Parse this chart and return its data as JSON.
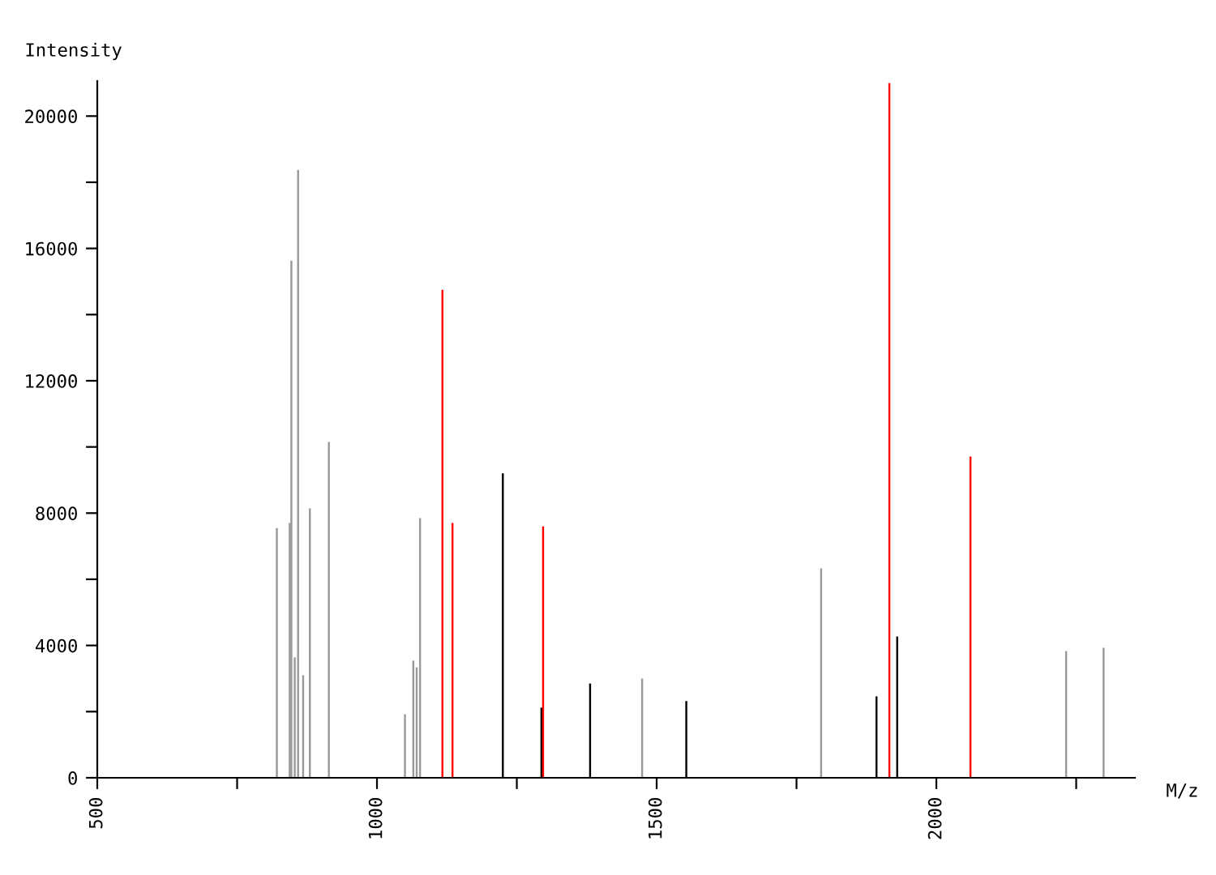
{
  "chart_data": {
    "type": "bar",
    "xlabel": "M/z",
    "ylabel": "Intensity",
    "xlim": [
      500,
      2355
    ],
    "ylim": [
      0,
      21060
    ],
    "xticks": [
      500,
      {
        "value": 750,
        "label": null
      },
      1000,
      {
        "value": 1250,
        "label": null
      },
      1500,
      {
        "value": 1750,
        "label": null
      },
      2000,
      {
        "value": 2250,
        "label": null
      }
    ],
    "yticks": [
      0,
      {
        "value": 2000,
        "label": null
      },
      4000,
      {
        "value": 6000,
        "label": null
      },
      8000,
      {
        "value": 10000,
        "label": null
      },
      12000,
      {
        "value": 14000,
        "label": null
      },
      16000,
      {
        "value": 18000,
        "label": null
      },
      20000
    ],
    "grid": false,
    "legend": false,
    "series": [
      {
        "color": "#999999",
        "x": [
          821,
          844,
          847,
          853,
          859,
          868,
          880,
          914,
          1050,
          1065,
          1071,
          1077,
          1474,
          1794,
          2232,
          2299
        ],
        "values": [
          7550,
          7700,
          15630,
          3640,
          18370,
          3100,
          8140,
          10150,
          1920,
          3540,
          3340,
          7850,
          3000,
          6330,
          3830,
          3930
        ]
      },
      {
        "color": "#000000",
        "x": [
          1225,
          1294,
          1381,
          1553,
          1893,
          1930
        ],
        "values": [
          9200,
          2120,
          2850,
          2320,
          2460,
          4270
        ]
      },
      {
        "color": "#ff0000",
        "x": [
          1117,
          1135,
          1297,
          1916,
          2061
        ],
        "values": [
          14750,
          7700,
          7600,
          21000,
          9710
        ]
      }
    ]
  }
}
